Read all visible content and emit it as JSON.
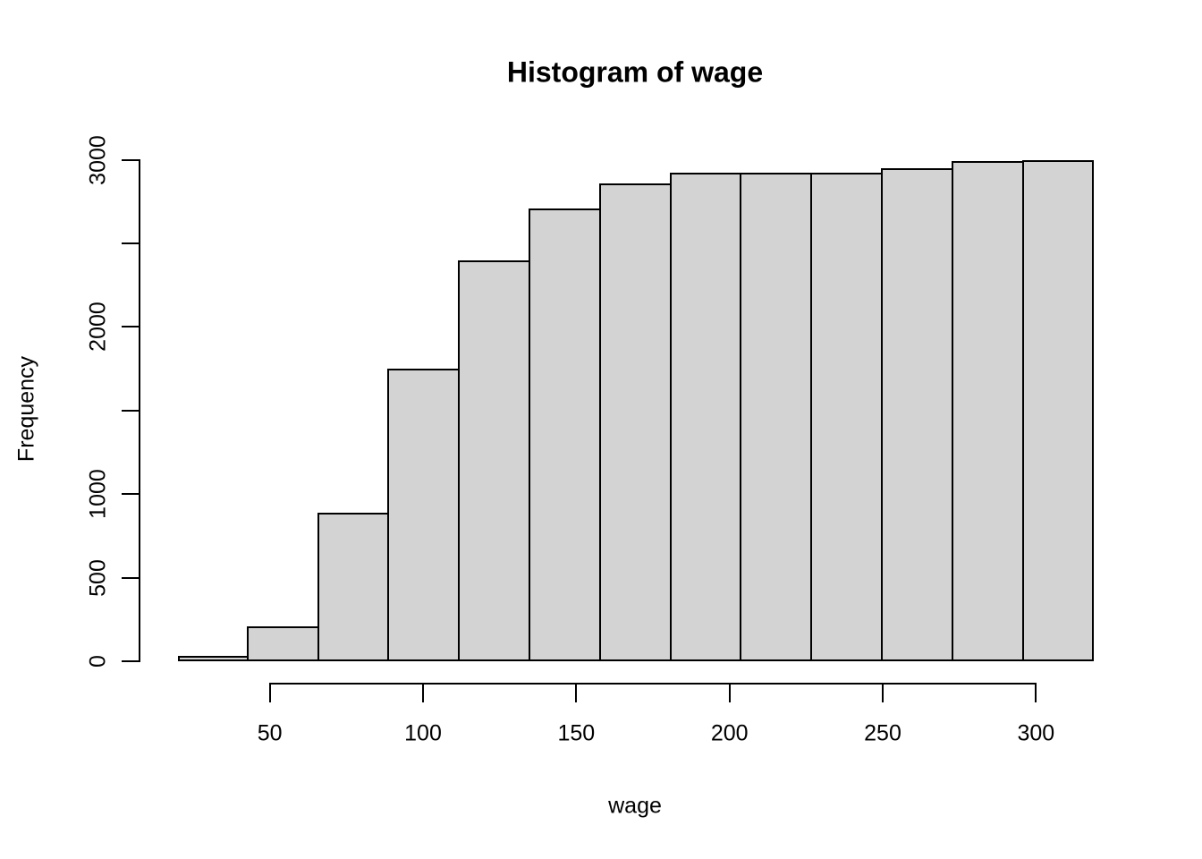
{
  "chart_data": {
    "type": "bar",
    "subtype": "histogram",
    "title": "Histogram of wage",
    "xlabel": "wage",
    "ylabel": "Frequency",
    "bin_edges": [
      20,
      43,
      66,
      89,
      112,
      135,
      158,
      181,
      204,
      227,
      250,
      273,
      296,
      319
    ],
    "bin_width": 23,
    "frequencies": [
      30,
      210,
      890,
      1750,
      2400,
      2710,
      2860,
      2920,
      2925,
      2925,
      2950,
      2990,
      3000
    ],
    "x_ticks": [
      50,
      100,
      150,
      200,
      250,
      300
    ],
    "x_tick_labels": [
      "50",
      "100",
      "150",
      "200",
      "250",
      "300"
    ],
    "y_ticks": [
      0,
      500,
      1000,
      1500,
      2000,
      2500,
      3000
    ],
    "y_tick_labels": [
      "0",
      "500",
      "1000",
      "",
      "2000",
      "",
      "3000"
    ],
    "xlim": [
      20,
      319
    ],
    "ylim": [
      0,
      3000
    ],
    "grid": false,
    "legend": null,
    "bar_fill": "#d3d3d3",
    "bar_border": "#000000",
    "axis_color": "#000000",
    "background": "#ffffff"
  }
}
